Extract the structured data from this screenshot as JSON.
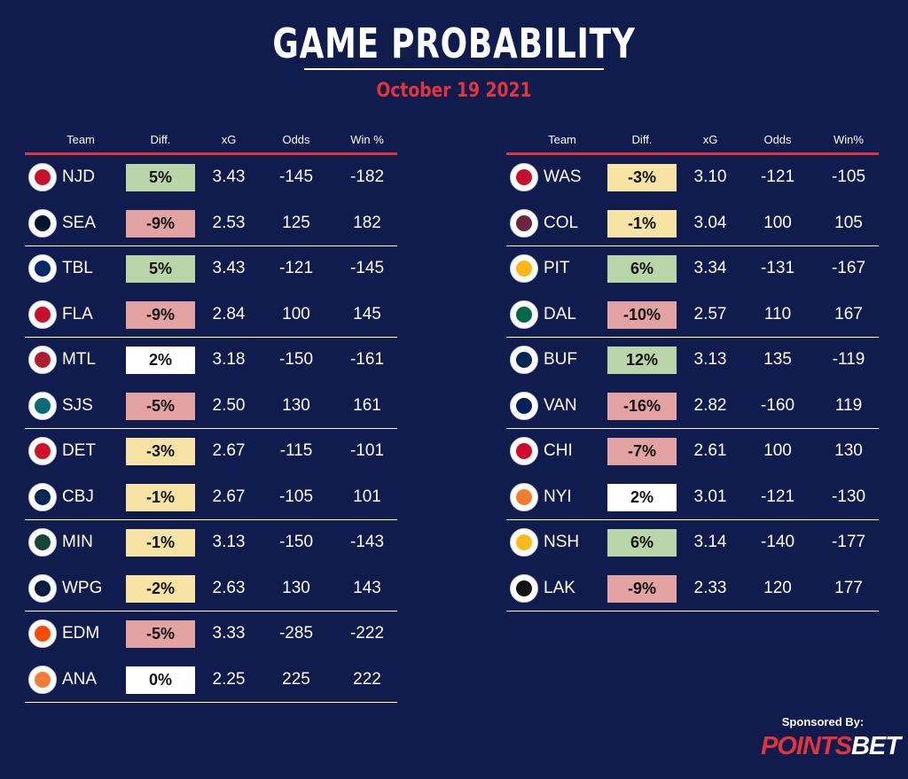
{
  "title": "GAME PROBABILITY",
  "date": "October 19 2021",
  "left_headers": {
    "team": "Team",
    "diff": "Diff.",
    "xg": "xG",
    "odds": "Odds",
    "win": "Win %"
  },
  "right_headers": {
    "team": "Team",
    "diff": "Diff.",
    "xg": "xG",
    "odds": "Odds",
    "win": "Win%"
  },
  "colors": {
    "green": "#b9d6a8",
    "red": "#e3a3a3",
    "yellow": "#f7e4a4",
    "white": "#ffffff"
  },
  "left_rows": [
    {
      "team": "NJD",
      "diff": "5%",
      "diff_color": "green",
      "xg": "3.43",
      "odds": "-145",
      "win": "-182",
      "logo_color": "#c8102e"
    },
    {
      "team": "SEA",
      "diff": "-9%",
      "diff_color": "red",
      "xg": "2.53",
      "odds": "125",
      "win": "182",
      "logo_color": "#001628"
    },
    {
      "team": "TBL",
      "diff": "5%",
      "diff_color": "green",
      "xg": "3.43",
      "odds": "-121",
      "win": "-145",
      "logo_color": "#002868"
    },
    {
      "team": "FLA",
      "diff": "-9%",
      "diff_color": "red",
      "xg": "2.84",
      "odds": "100",
      "win": "145",
      "logo_color": "#c8102e"
    },
    {
      "team": "MTL",
      "diff": "2%",
      "diff_color": "white",
      "xg": "3.18",
      "odds": "-150",
      "win": "-161",
      "logo_color": "#af1e2d"
    },
    {
      "team": "SJS",
      "diff": "-5%",
      "diff_color": "red",
      "xg": "2.50",
      "odds": "130",
      "win": "161",
      "logo_color": "#006d75"
    },
    {
      "team": "DET",
      "diff": "-3%",
      "diff_color": "yellow",
      "xg": "2.67",
      "odds": "-115",
      "win": "-101",
      "logo_color": "#ce1126"
    },
    {
      "team": "CBJ",
      "diff": "-1%",
      "diff_color": "yellow",
      "xg": "2.67",
      "odds": "-105",
      "win": "101",
      "logo_color": "#002654"
    },
    {
      "team": "MIN",
      "diff": "-1%",
      "diff_color": "yellow",
      "xg": "3.13",
      "odds": "-150",
      "win": "-143",
      "logo_color": "#154734"
    },
    {
      "team": "WPG",
      "diff": "-2%",
      "diff_color": "yellow",
      "xg": "2.63",
      "odds": "130",
      "win": "143",
      "logo_color": "#041e42"
    },
    {
      "team": "EDM",
      "diff": "-5%",
      "diff_color": "red",
      "xg": "3.33",
      "odds": "-285",
      "win": "-222",
      "logo_color": "#fc4c02"
    },
    {
      "team": "ANA",
      "diff": "0%",
      "diff_color": "white",
      "xg": "2.25",
      "odds": "225",
      "win": "222",
      "logo_color": "#f47a38"
    }
  ],
  "right_rows": [
    {
      "team": "WAS",
      "diff": "-3%",
      "diff_color": "yellow",
      "xg": "3.10",
      "odds": "-121",
      "win": "-105",
      "logo_color": "#c8102e"
    },
    {
      "team": "COL",
      "diff": "-1%",
      "diff_color": "yellow",
      "xg": "3.04",
      "odds": "100",
      "win": "105",
      "logo_color": "#6f263d"
    },
    {
      "team": "PIT",
      "diff": "6%",
      "diff_color": "green",
      "xg": "3.34",
      "odds": "-131",
      "win": "-167",
      "logo_color": "#fcb514"
    },
    {
      "team": "DAL",
      "diff": "-10%",
      "diff_color": "red",
      "xg": "2.57",
      "odds": "110",
      "win": "167",
      "logo_color": "#006847"
    },
    {
      "team": "BUF",
      "diff": "12%",
      "diff_color": "green",
      "xg": "3.13",
      "odds": "135",
      "win": "-119",
      "logo_color": "#002654"
    },
    {
      "team": "VAN",
      "diff": "-16%",
      "diff_color": "red",
      "xg": "2.82",
      "odds": "-160",
      "win": "119",
      "logo_color": "#00205b"
    },
    {
      "team": "CHI",
      "diff": "-7%",
      "diff_color": "red",
      "xg": "2.61",
      "odds": "100",
      "win": "130",
      "logo_color": "#cf0a2c"
    },
    {
      "team": "NYI",
      "diff": "2%",
      "diff_color": "white",
      "xg": "3.01",
      "odds": "-121",
      "win": "-130",
      "logo_color": "#f47d30"
    },
    {
      "team": "NSH",
      "diff": "6%",
      "diff_color": "green",
      "xg": "3.14",
      "odds": "-140",
      "win": "-177",
      "logo_color": "#ffb81c"
    },
    {
      "team": "LAK",
      "diff": "-9%",
      "diff_color": "red",
      "xg": "2.33",
      "odds": "120",
      "win": "177",
      "logo_color": "#111111"
    }
  ],
  "sponsor_label": "Sponsored By:",
  "sponsor_brand_a": "POINTS",
  "sponsor_brand_b": "BET"
}
